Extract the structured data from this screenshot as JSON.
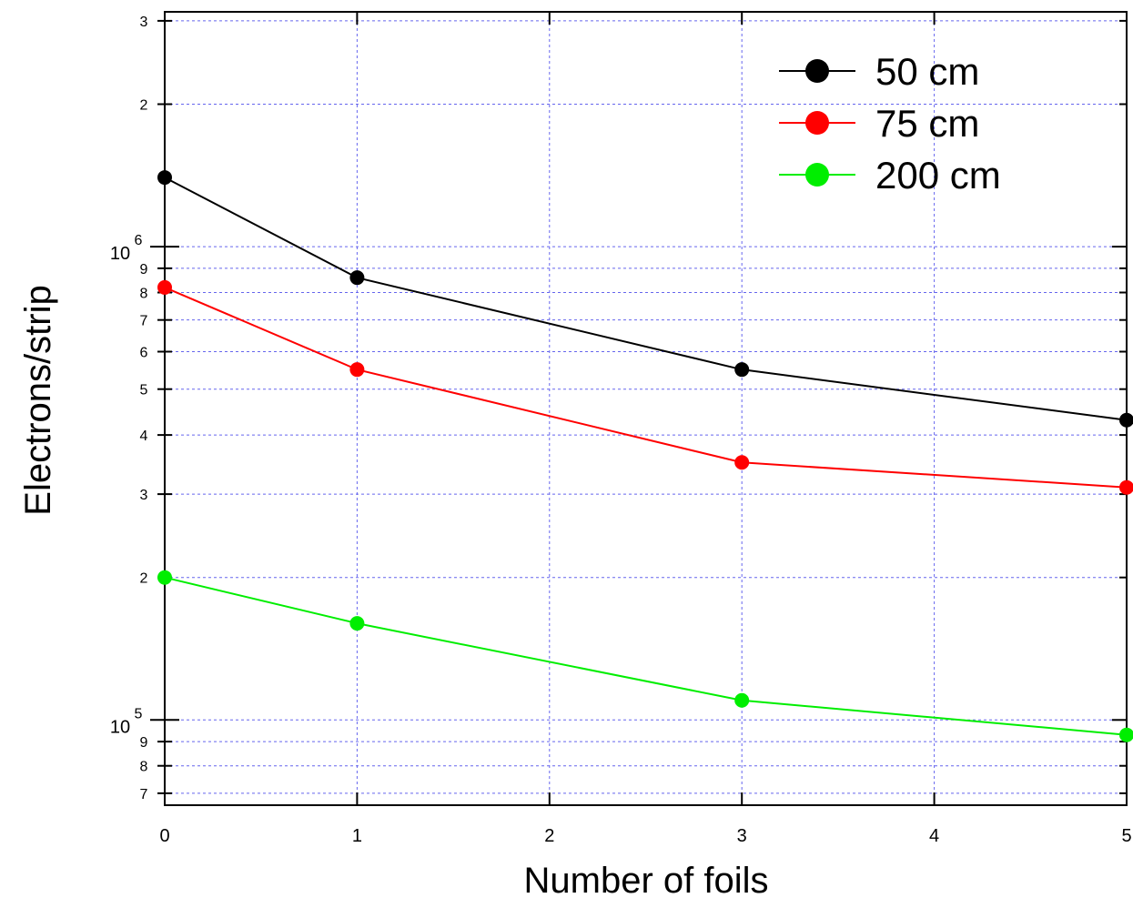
{
  "chart_data": {
    "type": "line",
    "title": "",
    "xlabel": "Number of foils",
    "ylabel": "Electrons/strip",
    "y_scale": "log",
    "xlim": [
      0,
      5
    ],
    "ylim": [
      68000,
      3100000
    ],
    "x_ticks": [
      "0",
      "1",
      "2",
      "3",
      "4",
      "5"
    ],
    "y_major_ticks": [
      {
        "value": 100000,
        "base": "10",
        "exp": "5"
      },
      {
        "value": 1000000,
        "base": "10",
        "exp": "6"
      }
    ],
    "y_minor_ticks": [
      {
        "value": 70000,
        "label": "7"
      },
      {
        "value": 80000,
        "label": "8"
      },
      {
        "value": 90000,
        "label": "9"
      },
      {
        "value": 200000,
        "label": "2"
      },
      {
        "value": 300000,
        "label": "3"
      },
      {
        "value": 400000,
        "label": "4"
      },
      {
        "value": 500000,
        "label": "5"
      },
      {
        "value": 600000,
        "label": "6"
      },
      {
        "value": 700000,
        "label": "7"
      },
      {
        "value": 800000,
        "label": "8"
      },
      {
        "value": 900000,
        "label": "9"
      },
      {
        "value": 2000000,
        "label": "2"
      },
      {
        "value": 3000000,
        "label": "3"
      }
    ],
    "grid": true,
    "legend_position": "top-right",
    "series": [
      {
        "name": "50 cm",
        "color": "#000000",
        "x": [
          0,
          1,
          3,
          5
        ],
        "y": [
          1400000,
          860000,
          550000,
          430000
        ]
      },
      {
        "name": "75 cm",
        "color": "#ff0000",
        "x": [
          0,
          1,
          3,
          5
        ],
        "y": [
          820000,
          550000,
          350000,
          310000
        ]
      },
      {
        "name": "200 cm",
        "color": "#00ee00",
        "x": [
          0,
          1,
          3,
          5
        ],
        "y": [
          200000,
          160000,
          110000,
          93000
        ]
      }
    ]
  }
}
